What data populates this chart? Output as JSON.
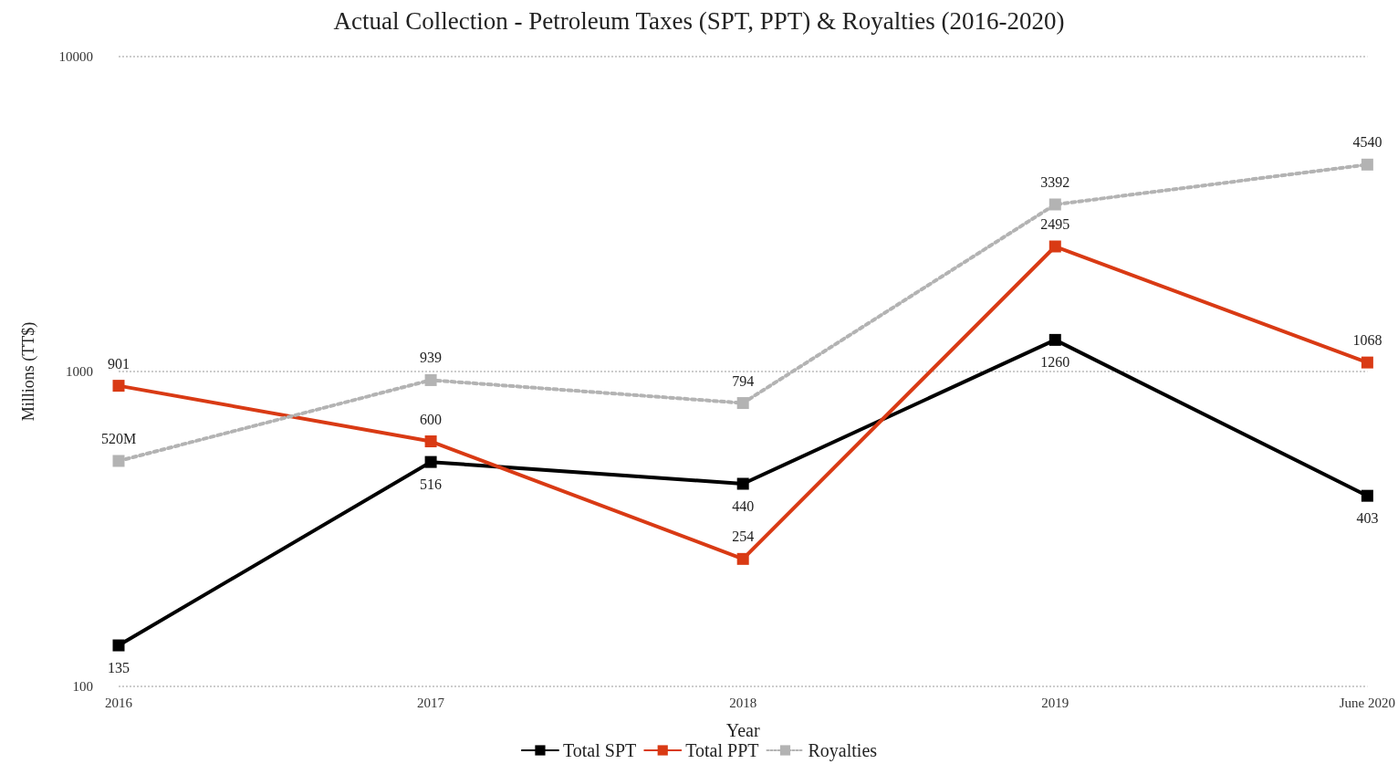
{
  "chart_data": {
    "type": "line",
    "title": "Actual Collection - Petroleum Taxes (SPT, PPT) & Royalties (2016-2020)",
    "xlabel": "Year",
    "ylabel": "Millions (TT$)",
    "categories": [
      "2016",
      "2017",
      "2018",
      "2019",
      "June 2020"
    ],
    "series": [
      {
        "name": "Total SPT",
        "color": "#000000",
        "values": [
          135,
          516,
          440,
          1260,
          403
        ],
        "value_labels": [
          "135",
          "516",
          "440",
          "1260",
          "403"
        ],
        "line_style": "solid"
      },
      {
        "name": "Total PPT",
        "color": "#d93a14",
        "values": [
          901,
          600,
          254,
          2495,
          1068
        ],
        "value_labels": [
          "901",
          "600",
          "254",
          "2495",
          "1068"
        ],
        "line_style": "solid"
      },
      {
        "name": "Royalties",
        "color": "#b3b3b3",
        "values": [
          520,
          939,
          794,
          3392,
          4540
        ],
        "value_labels": [
          "520M",
          "939",
          "794",
          "3392",
          "4540"
        ],
        "line_style": "dotted"
      }
    ],
    "log": "y",
    "ylim": [
      100,
      10000
    ],
    "yticks": [
      100,
      1000,
      10000
    ],
    "grid": "y",
    "legend": "bottom",
    "marker": "square"
  }
}
